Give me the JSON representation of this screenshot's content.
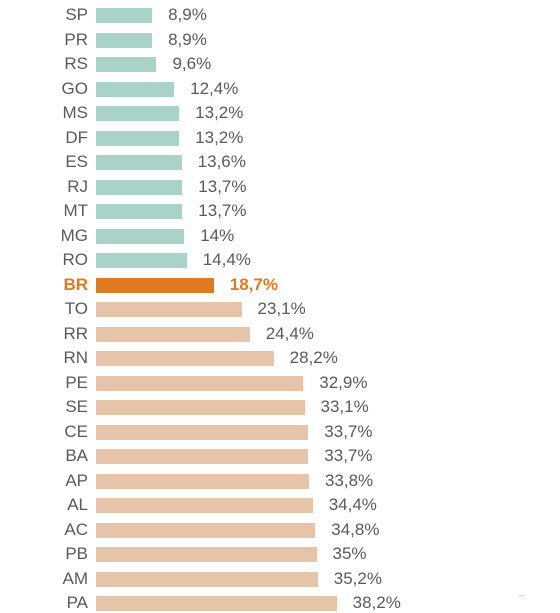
{
  "chart_data": {
    "type": "bar",
    "orientation": "horizontal",
    "categories": [
      "SP",
      "PR",
      "RS",
      "GO",
      "MS",
      "DF",
      "ES",
      "RJ",
      "MT",
      "MG",
      "RO",
      "BR",
      "TO",
      "RR",
      "RN",
      "PE",
      "SE",
      "CE",
      "BA",
      "AP",
      "AL",
      "AC",
      "PB",
      "AM",
      "PA"
    ],
    "values": [
      8.9,
      8.9,
      9.6,
      12.4,
      13.2,
      13.2,
      13.6,
      13.7,
      13.7,
      14,
      14.4,
      18.7,
      23.1,
      24.4,
      28.2,
      32.9,
      33.1,
      33.7,
      33.7,
      33.8,
      34.4,
      34.8,
      35,
      35.2,
      38.2
    ],
    "labels": [
      "8,9%",
      "8,9%",
      "9,6%",
      "12,4%",
      "13,2%",
      "13,2%",
      "13,6%",
      "13,7%",
      "13,7%",
      "14%",
      "14,4%",
      "18,7%",
      "23,1%",
      "24,4%",
      "28,2%",
      "32,9%",
      "33,1%",
      "33,7%",
      "33,7%",
      "33,8%",
      "34,4%",
      "34,8%",
      "35%",
      "35,2%",
      "38,2%"
    ],
    "highlight": "BR",
    "colors": {
      "below": "#a9d3c9",
      "highlight": "#e07a20",
      "above": "#e6c4aa"
    },
    "title": "",
    "xlabel": "",
    "ylabel": "",
    "grid": false,
    "legend": "none"
  },
  "corner_mark": "..."
}
